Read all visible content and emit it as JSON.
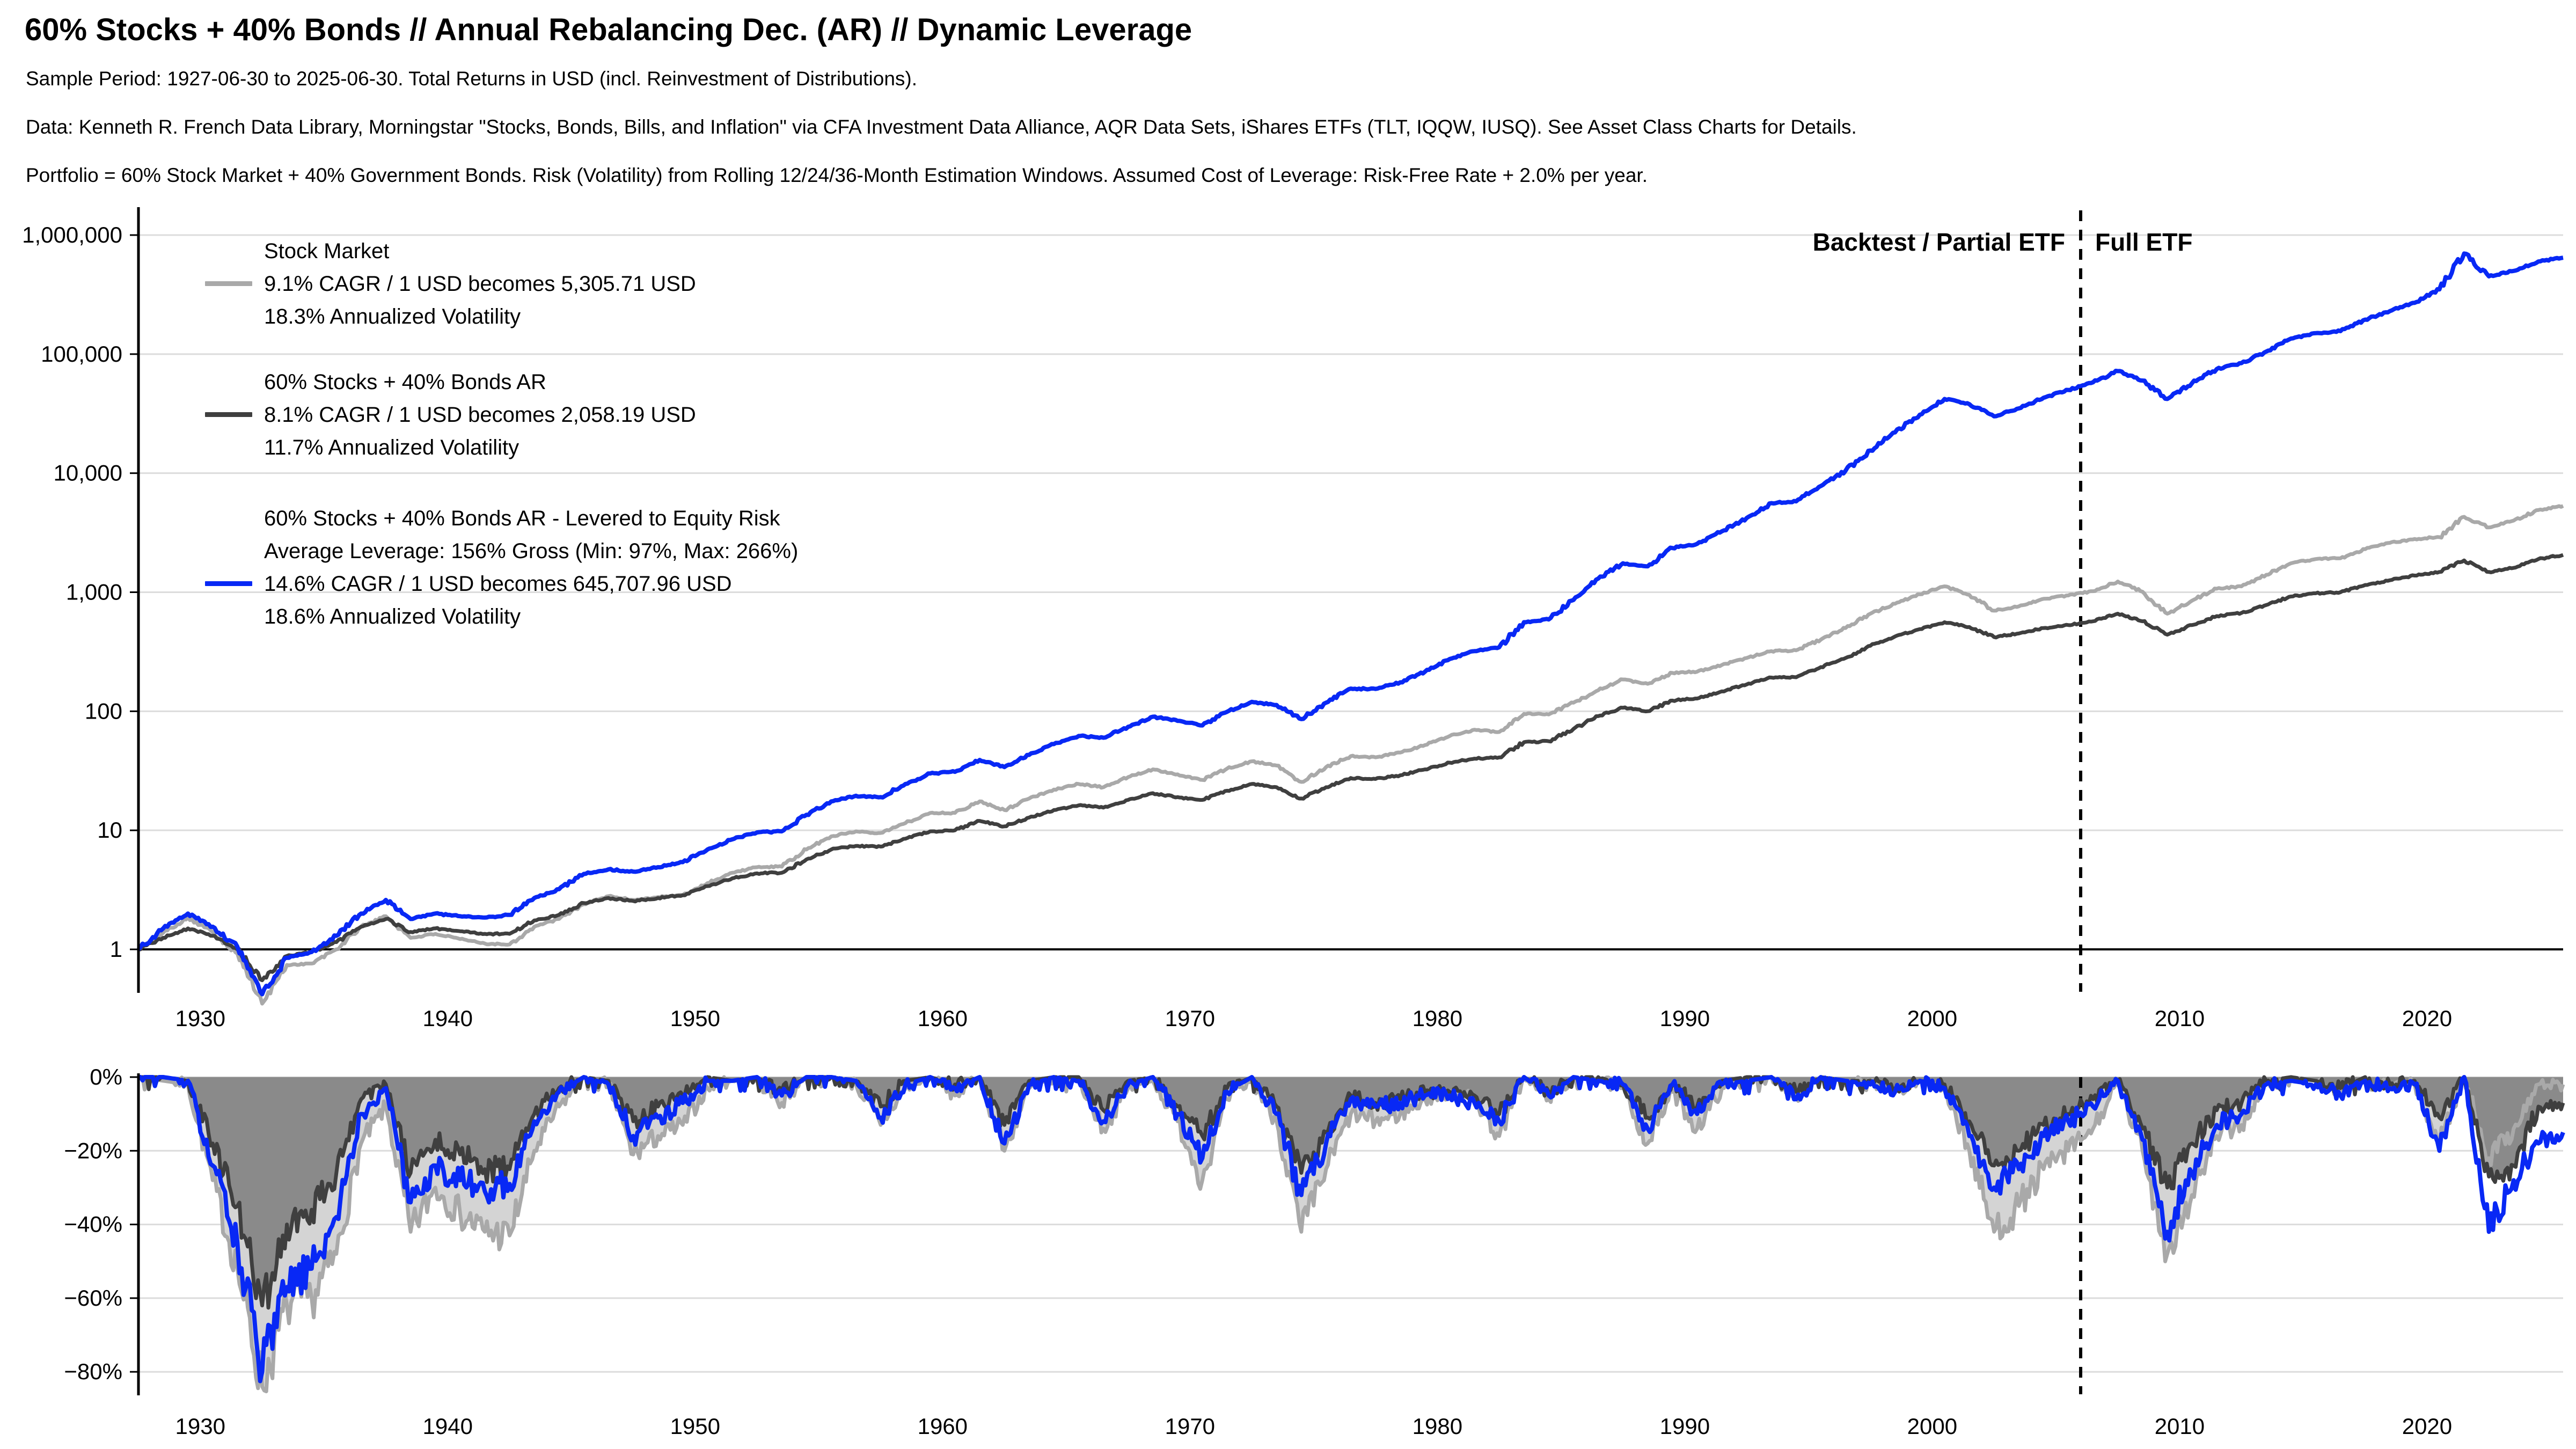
{
  "header": {
    "title": "60% Stocks + 40% Bonds // Annual Rebalancing Dec. (AR) // Dynamic Leverage",
    "subtitle_sample": "Sample Period: 1927-06-30 to 2025-06-30. Total Returns in USD (incl. Reinvestment of Distributions).",
    "subtitle_data": "Data: Kenneth R. French Data Library, Morningstar \"Stocks, Bonds, Bills, and Inflation\" via CFA Investment Data Alliance, AQR Data Sets, iShares ETFs (TLT, IQQW, IUSQ). See Asset Class Charts for Details.",
    "subtitle_portfolio": "Portfolio = 60% Stock Market + 40% Government Bonds. Risk (Volatility) from Rolling 12/24/36-Month Estimation Windows. Assumed Cost of Leverage: Risk-Free Rate + 2.0% per year."
  },
  "annotation": {
    "left_label": "Backtest / Partial ETF",
    "right_label": "Full ETF",
    "split_year": 2006.0
  },
  "colors": {
    "stock_line": "#A9A9A9",
    "stock_fill": "#D4D4D4",
    "portfolio_line": "#3F3F3F",
    "portfolio_fill": "#8A8A8A",
    "levered_line": "#0828F5",
    "grid": "#DCDCDC",
    "baseline": "#000000",
    "text": "#000000"
  },
  "legend": {
    "items": [
      {
        "series": "stock",
        "lines": [
          "Stock Market",
          "9.1% CAGR / 1 USD becomes 5,305.71 USD",
          "18.3% Annualized Volatility"
        ]
      },
      {
        "series": "portfolio",
        "lines": [
          "60% Stocks + 40% Bonds AR",
          "8.1% CAGR / 1 USD becomes 2,058.19 USD",
          "11.7% Annualized Volatility"
        ]
      },
      {
        "series": "levered",
        "lines": [
          "60% Stocks + 40% Bonds AR - Levered to Equity Risk",
          "Average Leverage: 156% Gross (Min: 97%, Max: 266%)",
          "14.6% CAGR / 1 USD becomes 645,707.96 USD",
          "18.6% Annualized Volatility"
        ]
      }
    ]
  },
  "chart_data": [
    {
      "id": "growth",
      "type": "line",
      "yscale": "log",
      "x_start": 1927.5,
      "x_step": 1,
      "xlim": [
        1927.5,
        2025.5
      ],
      "ylim": [
        0.3,
        1500000
      ],
      "x_ticks": [
        1930,
        1940,
        1950,
        1960,
        1970,
        1980,
        1990,
        2000,
        2010,
        2020
      ],
      "y_tick_values": [
        1,
        10,
        100,
        1000,
        10000,
        100000,
        1000000
      ],
      "y_tick_labels": [
        "1",
        "10",
        "100",
        "1,000",
        "10,000",
        "100,000",
        "1,000,000"
      ],
      "baseline_value": 1,
      "vline_x": 2006.0,
      "grid": true,
      "legend_position": "upper-left",
      "series": [
        {
          "name": "Stock Market",
          "color_key": "stock_line",
          "values": [
            1.0,
            1.38,
            1.85,
            1.4,
            0.92,
            0.35,
            0.74,
            0.76,
            1.0,
            1.55,
            1.9,
            1.25,
            1.35,
            1.22,
            1.12,
            1.1,
            1.55,
            1.8,
            2.4,
            2.8,
            2.6,
            2.75,
            2.85,
            3.6,
            4.4,
            4.9,
            4.95,
            6.9,
            8.9,
            9.8,
            9.5,
            11.5,
            14.0,
            14.0,
            17.5,
            14.8,
            18.5,
            22.0,
            24.5,
            23.0,
            28.0,
            32.5,
            29.5,
            26.5,
            33.0,
            38.0,
            35.0,
            25.5,
            34.0,
            42.0,
            41.0,
            45.0,
            52.0,
            62.0,
            70.0,
            67.0,
            95.0,
            94.0,
            118,
            150,
            185,
            170,
            210,
            215,
            245,
            280,
            320,
            325,
            400,
            500,
            660,
            800,
            960,
            1120,
            950,
            700,
            760,
            880,
            940,
            1020,
            1230,
            1010,
            660,
            850,
            1070,
            1120,
            1400,
            1750,
            1900,
            1930,
            2300,
            2600,
            2800,
            2900,
            4300,
            3500,
            4000,
            4900,
            5305.71
          ]
        },
        {
          "name": "60% Stocks + 40% Bonds AR",
          "color_key": "portfolio_line",
          "values": [
            1.0,
            1.25,
            1.5,
            1.3,
            1.0,
            0.55,
            0.88,
            0.95,
            1.15,
            1.55,
            1.8,
            1.4,
            1.5,
            1.42,
            1.35,
            1.35,
            1.75,
            1.95,
            2.45,
            2.7,
            2.55,
            2.7,
            2.85,
            3.4,
            3.95,
            4.35,
            4.4,
            5.7,
            6.9,
            7.4,
            7.3,
            8.5,
            9.8,
            10.0,
            12.0,
            10.8,
            12.8,
            14.8,
            16.2,
            15.5,
            18.0,
            20.5,
            19.0,
            18.0,
            21.5,
            24.5,
            23.0,
            18.5,
            23.0,
            27.5,
            27.0,
            29.0,
            32.5,
            37.0,
            40.0,
            41.0,
            55.0,
            56.0,
            71.0,
            91.0,
            107,
            100,
            123,
            128,
            147,
            168,
            192,
            193,
            235,
            280,
            355,
            425,
            490,
            560,
            510,
            420,
            450,
            500,
            530,
            570,
            660,
            570,
            440,
            530,
            630,
            670,
            780,
            920,
            980,
            1000,
            1150,
            1260,
            1380,
            1480,
            1850,
            1480,
            1600,
            1900,
            2058.19
          ]
        },
        {
          "name": "60% Stocks + 40% Bonds AR - Levered to Equity Risk",
          "color_key": "levered_line",
          "values": [
            1.0,
            1.5,
            2.0,
            1.55,
            1.05,
            0.42,
            0.85,
            0.95,
            1.3,
            2.0,
            2.6,
            1.8,
            2.0,
            1.9,
            1.85,
            1.95,
            2.7,
            3.2,
            4.3,
            4.7,
            4.5,
            4.9,
            5.4,
            6.9,
            8.4,
            9.6,
            9.8,
            13.5,
            17.5,
            19.5,
            19.0,
            24.5,
            30.0,
            31.0,
            39.0,
            34.0,
            43.0,
            53.0,
            62.0,
            60.0,
            74.0,
            90.0,
            83.0,
            76.0,
            99.0,
            120,
            113,
            86.0,
            118,
            155,
            154,
            175,
            215,
            275,
            320,
            345,
            560,
            590,
            860,
            1300,
            1750,
            1650,
            2350,
            2550,
            3250,
            4200,
            5600,
            5800,
            7800,
            10500,
            15500,
            22000,
            31000,
            42000,
            38000,
            30000,
            35000,
            43000,
            50000,
            58000,
            72000,
            60000,
            42000,
            57000,
            75000,
            84000,
            105000,
            135000,
            150000,
            156000,
            195000,
            230000,
            270000,
            350000,
            700000,
            450000,
            500000,
            600000,
            645707.96
          ]
        }
      ]
    },
    {
      "id": "drawdown",
      "type": "area",
      "x_start": 1927.5,
      "x_step": 1,
      "xlim": [
        1927.5,
        2025.5
      ],
      "ylim": [
        -86,
        0
      ],
      "x_ticks": [
        1930,
        1940,
        1950,
        1960,
        1970,
        1980,
        1990,
        2000,
        2010,
        2020
      ],
      "y_tick_values": [
        0,
        -20,
        -40,
        -60,
        -80
      ],
      "y_tick_labels": [
        "0%",
        "−20%",
        "−40%",
        "−60%",
        "−80%"
      ],
      "vline_x": 2006.0,
      "grid": true,
      "series": [
        {
          "name": "Stock Market Drawdown",
          "color_key": "stock_line",
          "fill_key": "stock_fill",
          "values": [
            0,
            -1,
            -2,
            -28,
            -52,
            -84,
            -62,
            -60,
            -48,
            -18,
            -8,
            -42,
            -30,
            -37,
            -42,
            -43,
            -20,
            -8,
            0,
            -2,
            -21,
            -16,
            -13,
            -3,
            -1,
            -1,
            -7,
            0,
            0,
            -2,
            -13,
            -3,
            0,
            -5,
            0,
            -20,
            -3,
            0,
            -1,
            -14,
            -3,
            -1,
            -12,
            -28,
            -6,
            -1,
            -12,
            -42,
            -25,
            -10,
            -12,
            -10,
            -6,
            -4,
            -6,
            -16,
            0,
            -6,
            0,
            -1,
            -3,
            -18,
            -4,
            -14,
            -3,
            -1,
            0,
            -5,
            0,
            -1,
            -2,
            -4,
            -1,
            -3,
            -20,
            -42,
            -35,
            -25,
            -20,
            -14,
            -2,
            -20,
            -48,
            -32,
            -16,
            -13,
            -2,
            0,
            -1,
            -4,
            0,
            -2,
            -2,
            -18,
            0,
            -22,
            -14,
            -2,
            -2
          ]
        },
        {
          "name": "60% Stocks + 40% Bonds AR Drawdown",
          "color_key": "portfolio_line",
          "fill_key": "portfolio_fill",
          "values": [
            0,
            0,
            -1,
            -18,
            -35,
            -62,
            -40,
            -36,
            -26,
            -6,
            -2,
            -26,
            -17,
            -21,
            -25,
            -25,
            -10,
            -3,
            0,
            -1,
            -12,
            -8,
            -5,
            0,
            -1,
            0,
            -4,
            0,
            0,
            -1,
            -8,
            -1,
            0,
            -2,
            0,
            -13,
            -1,
            0,
            0,
            -9,
            -1,
            0,
            -8,
            -16,
            -3,
            0,
            -8,
            -26,
            -15,
            -5,
            -7,
            -6,
            -4,
            -4,
            -5,
            -10,
            0,
            -4,
            0,
            0,
            -2,
            -11,
            -2,
            -8,
            -1,
            0,
            0,
            -4,
            0,
            -1,
            -1,
            -3,
            -1,
            -2,
            -12,
            -24,
            -20,
            -13,
            -10,
            -6,
            -1,
            -14,
            -30,
            -18,
            -9,
            -7,
            -1,
            0,
            -1,
            -3,
            0,
            -2,
            -1,
            -11,
            0,
            -27,
            -24,
            -8,
            -7
          ]
        },
        {
          "name": "Levered Drawdown",
          "color_key": "levered_line",
          "fill_key": null,
          "values": [
            0,
            0,
            -1,
            -24,
            -45,
            -80,
            -57,
            -52,
            -38,
            -10,
            -3,
            -34,
            -24,
            -28,
            -31,
            -29,
            -12,
            -4,
            0,
            -2,
            -16,
            -11,
            -7,
            -1,
            -1,
            0,
            -5,
            0,
            0,
            -1,
            -11,
            -2,
            0,
            -3,
            0,
            -18,
            -2,
            0,
            -1,
            -12,
            -2,
            0,
            -10,
            -22,
            -4,
            0,
            -10,
            -32,
            -18,
            -6,
            -8,
            -7,
            -5,
            -5,
            -7,
            -12,
            0,
            -5,
            0,
            -1,
            -2,
            -14,
            -2,
            -10,
            -2,
            -1,
            0,
            -6,
            0,
            -1,
            -2,
            -4,
            -1,
            -3,
            -16,
            -30,
            -25,
            -16,
            -12,
            -8,
            -1,
            -17,
            -42,
            -26,
            -13,
            -10,
            -2,
            -1,
            -2,
            -5,
            -1,
            -3,
            -2,
            -20,
            0,
            -42,
            -28,
            -18,
            -15
          ]
        }
      ]
    }
  ]
}
